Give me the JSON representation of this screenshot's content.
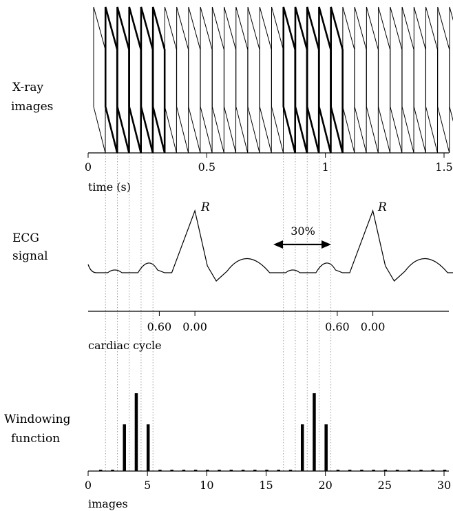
{
  "xray": {
    "label_line1": "X-ray",
    "label_line2": "images",
    "frame_count": 31,
    "frame_interval_s": 0.05,
    "bold_frames": [
      1,
      2,
      3,
      4,
      5,
      16,
      17,
      18,
      19,
      20
    ],
    "axis_label": "time (s)",
    "ticks": [
      {
        "value": 0,
        "text": "0"
      },
      {
        "value": 0.5,
        "text": "0.5"
      },
      {
        "value": 1,
        "text": "1"
      },
      {
        "value": 1.5,
        "text": "1.5"
      }
    ],
    "xlim": [
      0,
      1.5
    ]
  },
  "ecg": {
    "label_line1": "ECG",
    "label_line2": "signal",
    "r_label": "R",
    "r_times_s": [
      0.45,
      1.2
    ],
    "duration_label": "30%",
    "axis_label": "cardiac cycle",
    "cycle_ticks": [
      {
        "time_s": 0.3,
        "text": "0.60"
      },
      {
        "time_s": 0.45,
        "text": "0.00"
      },
      {
        "time_s": 1.05,
        "text": "0.60"
      },
      {
        "time_s": 1.2,
        "text": "0.00"
      }
    ]
  },
  "windowing": {
    "label_line1": "Windowing",
    "label_line2": "function",
    "axis_label": "images",
    "ticks": [
      {
        "value": 0,
        "text": "0"
      },
      {
        "value": 5,
        "text": "5"
      },
      {
        "value": 10,
        "text": "10"
      },
      {
        "value": 15,
        "text": "15"
      },
      {
        "value": 20,
        "text": "20"
      },
      {
        "value": 25,
        "text": "25"
      },
      {
        "value": 30,
        "text": "30"
      }
    ],
    "xlim": [
      0,
      30
    ],
    "weights": [
      0,
      0.01,
      0.6,
      1,
      0.6,
      0.01,
      0,
      0,
      0,
      0,
      0,
      0,
      0,
      0,
      0,
      0,
      0.01,
      0.6,
      1,
      0.6,
      0.01,
      0,
      0,
      0,
      0,
      0,
      0,
      0,
      0,
      0,
      0
    ]
  }
}
